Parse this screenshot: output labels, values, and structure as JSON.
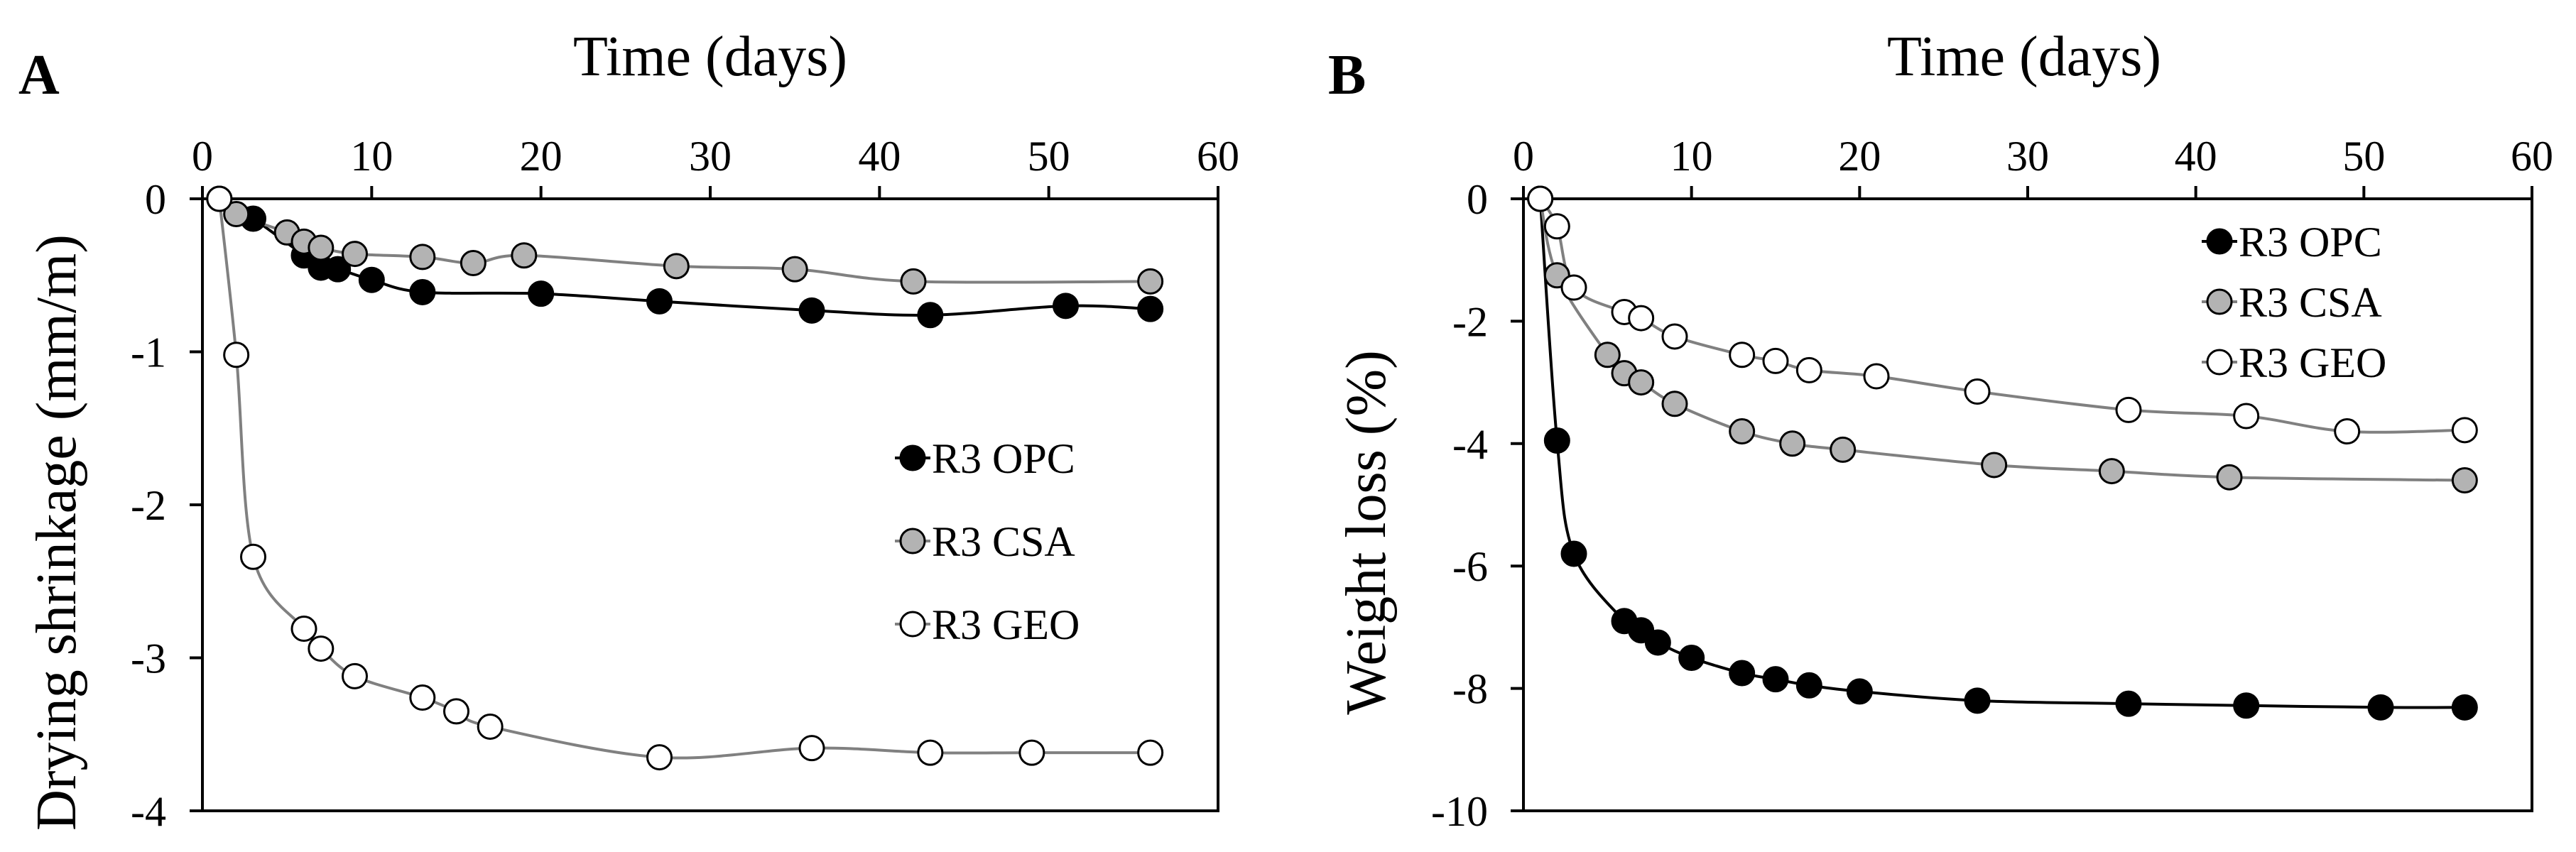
{
  "chart_data": [
    {
      "panel": "A",
      "type": "scatter",
      "xlabel": "Time (days)",
      "ylabel": "Drying shrinkage (mm/m)",
      "xlim": [
        0,
        60
      ],
      "ylim": [
        -4,
        0
      ],
      "xticks": [
        0,
        10,
        20,
        30,
        40,
        50,
        60
      ],
      "yticks": [
        0,
        -1,
        -2,
        -3,
        -4
      ],
      "legend_position": "center-right",
      "series": [
        {
          "name": "R3 OPC",
          "marker_fill": "#000000",
          "line_color": "#000000",
          "x": [
            1,
            3,
            6,
            7,
            8,
            10,
            13,
            20,
            27,
            36,
            43,
            51,
            56
          ],
          "y": [
            0,
            -0.13,
            -0.37,
            -0.45,
            -0.46,
            -0.53,
            -0.61,
            -0.62,
            -0.67,
            -0.73,
            -0.76,
            -0.7,
            -0.72
          ]
        },
        {
          "name": "R3 CSA",
          "marker_fill": "#b3b3b3",
          "line_color": "#808080",
          "x": [
            1,
            2,
            5,
            6,
            7,
            9,
            13,
            16,
            19,
            28,
            35,
            42,
            56
          ],
          "y": [
            0,
            -0.1,
            -0.22,
            -0.28,
            -0.32,
            -0.36,
            -0.38,
            -0.42,
            -0.37,
            -0.44,
            -0.46,
            -0.54,
            -0.54
          ]
        },
        {
          "name": "R3 GEO",
          "marker_fill": "#ffffff",
          "line_color": "#808080",
          "x": [
            1,
            2,
            3,
            6,
            7,
            9,
            13,
            15,
            17,
            27,
            36,
            43,
            49,
            56
          ],
          "y": [
            0,
            -1.02,
            -2.34,
            -2.81,
            -2.94,
            -3.12,
            -3.26,
            -3.35,
            -3.45,
            -3.65,
            -3.59,
            -3.62,
            -3.62,
            -3.62
          ]
        }
      ]
    },
    {
      "panel": "B",
      "type": "scatter",
      "xlabel": "Time (days)",
      "ylabel": "Weight loss (%)",
      "xlim": [
        0,
        60
      ],
      "ylim": [
        -10,
        0
      ],
      "xticks": [
        0,
        10,
        20,
        30,
        40,
        50,
        60
      ],
      "yticks": [
        0,
        -2,
        -4,
        -6,
        -8,
        -10
      ],
      "legend_position": "top-right",
      "series": [
        {
          "name": "R3 OPC",
          "marker_fill": "#000000",
          "line_color": "#000000",
          "x": [
            1,
            2,
            3,
            6,
            7,
            8,
            10,
            13,
            15,
            17,
            20,
            27,
            36,
            43,
            51,
            56
          ],
          "y": [
            0,
            -3.95,
            -5.8,
            -6.9,
            -7.05,
            -7.25,
            -7.5,
            -7.75,
            -7.85,
            -7.95,
            -8.05,
            -8.2,
            -8.25,
            -8.28,
            -8.31,
            -8.31
          ]
        },
        {
          "name": "R3 CSA",
          "marker_fill": "#b3b3b3",
          "line_color": "#808080",
          "x": [
            1,
            2,
            5,
            6,
            7,
            9,
            13,
            16,
            19,
            28,
            35,
            42,
            56
          ],
          "y": [
            0,
            -1.25,
            -2.55,
            -2.85,
            -3.0,
            -3.35,
            -3.8,
            -4.0,
            -4.1,
            -4.35,
            -4.45,
            -4.55,
            -4.6
          ]
        },
        {
          "name": "R3 GEO",
          "marker_fill": "#ffffff",
          "line_color": "#808080",
          "x": [
            1,
            2,
            3,
            6,
            7,
            9,
            13,
            15,
            17,
            21,
            27,
            36,
            43,
            49,
            56
          ],
          "y": [
            0,
            -0.45,
            -1.45,
            -1.85,
            -1.95,
            -2.25,
            -2.55,
            -2.65,
            -2.8,
            -2.9,
            -3.15,
            -3.45,
            -3.55,
            -3.8,
            -3.78
          ]
        }
      ]
    }
  ]
}
